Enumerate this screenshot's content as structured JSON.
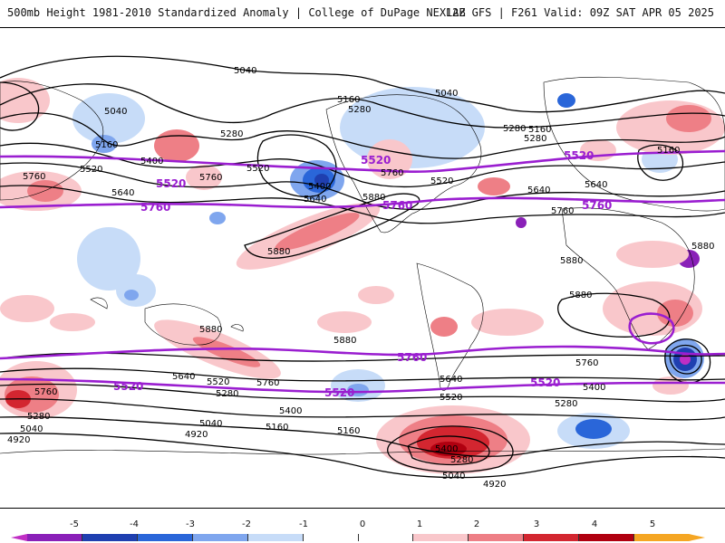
{
  "header": {
    "title": "500mb Height 1981-2010 Standardized Anomaly | College of DuPage NEXLAB",
    "run_info": "12Z GFS | F261 Valid: 09Z SAT APR 05 2025"
  },
  "legend": {
    "ticks": [
      "-5",
      "-4",
      "-3",
      "-2",
      "-1",
      "0",
      "1",
      "2",
      "3",
      "4",
      "5"
    ],
    "colors": [
      "#8a20b8",
      "#1f3fb0",
      "#2a66d9",
      "#7fa6ee",
      "#c7dcf8",
      "#ffffff",
      "#ffffff",
      "#f9c7cb",
      "#ee7f86",
      "#d32630",
      "#b00010",
      "#f5a623"
    ],
    "low_arrow_color": "#c02ec4",
    "high_arrow_color": "#f5a623"
  },
  "map": {
    "contour_labels_black": [
      {
        "text": "5040"
      },
      {
        "text": "5040"
      },
      {
        "text": "5040"
      },
      {
        "text": "5160"
      },
      {
        "text": "5160"
      },
      {
        "text": "5280"
      },
      {
        "text": "5280"
      },
      {
        "text": "5400"
      },
      {
        "text": "5520"
      },
      {
        "text": "5640"
      },
      {
        "text": "5760"
      },
      {
        "text": "5760"
      },
      {
        "text": "5400"
      },
      {
        "text": "5640"
      },
      {
        "text": "5880"
      },
      {
        "text": "5760"
      },
      {
        "text": "5520"
      },
      {
        "text": "5160"
      },
      {
        "text": "5280"
      },
      {
        "text": "5280"
      },
      {
        "text": "5160"
      },
      {
        "text": "5400"
      },
      {
        "text": "5640"
      },
      {
        "text": "5520"
      },
      {
        "text": "5760"
      },
      {
        "text": "5880"
      },
      {
        "text": "5880"
      },
      {
        "text": "5880"
      },
      {
        "text": "5880"
      },
      {
        "text": "5880"
      },
      {
        "text": "5880"
      },
      {
        "text": "5760"
      },
      {
        "text": "5640"
      },
      {
        "text": "5520"
      },
      {
        "text": "5280"
      },
      {
        "text": "5400"
      },
      {
        "text": "5160"
      },
      {
        "text": "5040"
      },
      {
        "text": "4920"
      },
      {
        "text": "5640"
      },
      {
        "text": "5520"
      },
      {
        "text": "5160"
      },
      {
        "text": "5400"
      },
      {
        "text": "5280"
      },
      {
        "text": "5040"
      },
      {
        "text": "4920"
      },
      {
        "text": "5760"
      },
      {
        "text": "5400"
      },
      {
        "text": "5280"
      },
      {
        "text": "5520"
      },
      {
        "text": "5760"
      },
      {
        "text": "5280"
      },
      {
        "text": "5040"
      },
      {
        "text": "4920"
      },
      {
        "text": "5760"
      },
      {
        "text": "5640"
      }
    ],
    "contour_labels_purple": [
      {
        "text": "5520"
      },
      {
        "text": "5760"
      },
      {
        "text": "5520"
      },
      {
        "text": "5760"
      },
      {
        "text": "5520"
      },
      {
        "text": "5760"
      },
      {
        "text": "5760"
      },
      {
        "text": "5520"
      },
      {
        "text": "5520"
      },
      {
        "text": "5520"
      }
    ]
  }
}
